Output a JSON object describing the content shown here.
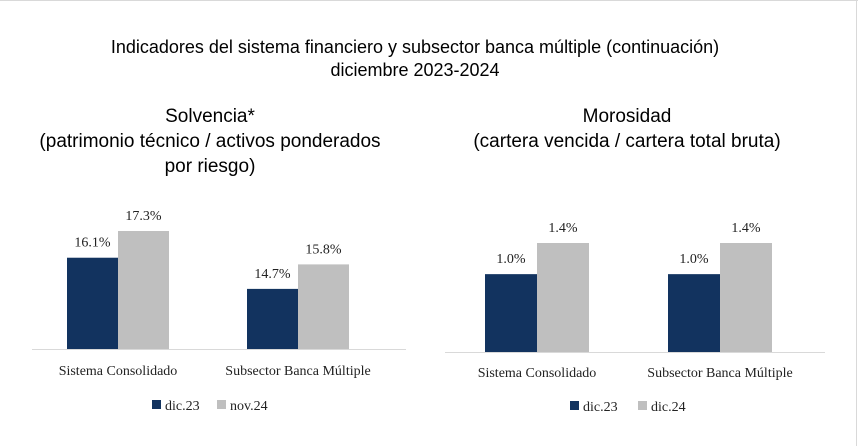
{
  "main_title": {
    "line1": "Indicadores del sistema financiero y subsector banca múltiple (continuación)",
    "line2": "diciembre 2023-2024"
  },
  "colors": {
    "series_1": "#12335f",
    "series_2": "#bfbfbf"
  },
  "chart_data": [
    {
      "type": "bar",
      "title_lines": [
        "Solvencia*",
        "(patrimonio técnico / activos ponderados",
        "por riesgo)"
      ],
      "categories": [
        "Sistema Consolidado",
        "Subsector Banca Múltiple"
      ],
      "series": [
        {
          "name": "dic.23",
          "values": [
            16.1,
            14.7
          ],
          "labels": [
            "16.1%",
            "14.7%"
          ]
        },
        {
          "name": "nov.24",
          "values": [
            17.3,
            15.8
          ],
          "labels": [
            "17.3%",
            "15.8%"
          ]
        }
      ],
      "ylim": [
        12.0,
        17.3
      ],
      "grid": false,
      "legend": "bottom"
    },
    {
      "type": "bar",
      "title_lines": [
        "Morosidad",
        "(cartera vencida / cartera total bruta)"
      ],
      "categories": [
        "Sistema Consolidado",
        "Subsector Banca Múltiple"
      ],
      "series": [
        {
          "name": "dic.23",
          "values": [
            1.0,
            1.0
          ],
          "labels": [
            "1.0%",
            "1.0%"
          ]
        },
        {
          "name": "dic.24",
          "values": [
            1.4,
            1.4
          ],
          "labels": [
            "1.4%",
            "1.4%"
          ]
        }
      ],
      "ylim": [
        0.0,
        1.4
      ],
      "grid": false,
      "legend": "bottom"
    }
  ]
}
